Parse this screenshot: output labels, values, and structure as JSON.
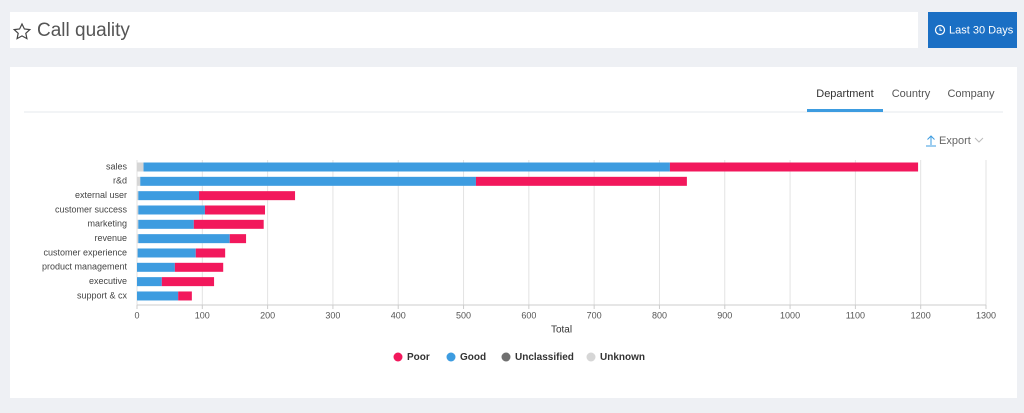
{
  "header": {
    "title": "Call quality",
    "button": "Last 30 Days"
  },
  "tabs": [
    "Department",
    "Country",
    "Company"
  ],
  "export": "Export",
  "chart_data": {
    "type": "stacked-bar-horizontal",
    "categories": [
      "sales",
      "r&d",
      "external user",
      "customer success",
      "marketing",
      "revenue",
      "customer experience",
      "product management",
      "executive",
      "support & cx"
    ],
    "series": [
      {
        "name": "Poor",
        "color": "#f2185c",
        "values": [
          380,
          323,
          147,
          92,
          107,
          25,
          45,
          74,
          80,
          21
        ]
      },
      {
        "name": "Good",
        "color": "#3d9ce0",
        "values": [
          806,
          514,
          93,
          102,
          85,
          140,
          89,
          58,
          38,
          63
        ]
      },
      {
        "name": "Unclassified",
        "color": "#707070",
        "values": [
          0,
          0,
          0,
          0,
          0,
          0,
          0,
          0,
          0,
          0
        ]
      },
      {
        "name": "Unknown",
        "color": "#d6d6d6",
        "values": [
          10,
          5,
          2,
          2,
          2,
          2,
          1,
          0,
          0,
          0
        ]
      }
    ],
    "xlabel": "Total",
    "xlim": [
      0,
      1300
    ],
    "xticks": [
      0,
      100,
      200,
      300,
      400,
      500,
      600,
      700,
      800,
      900,
      1000,
      1100,
      1200,
      1300
    ],
    "grid": true
  }
}
